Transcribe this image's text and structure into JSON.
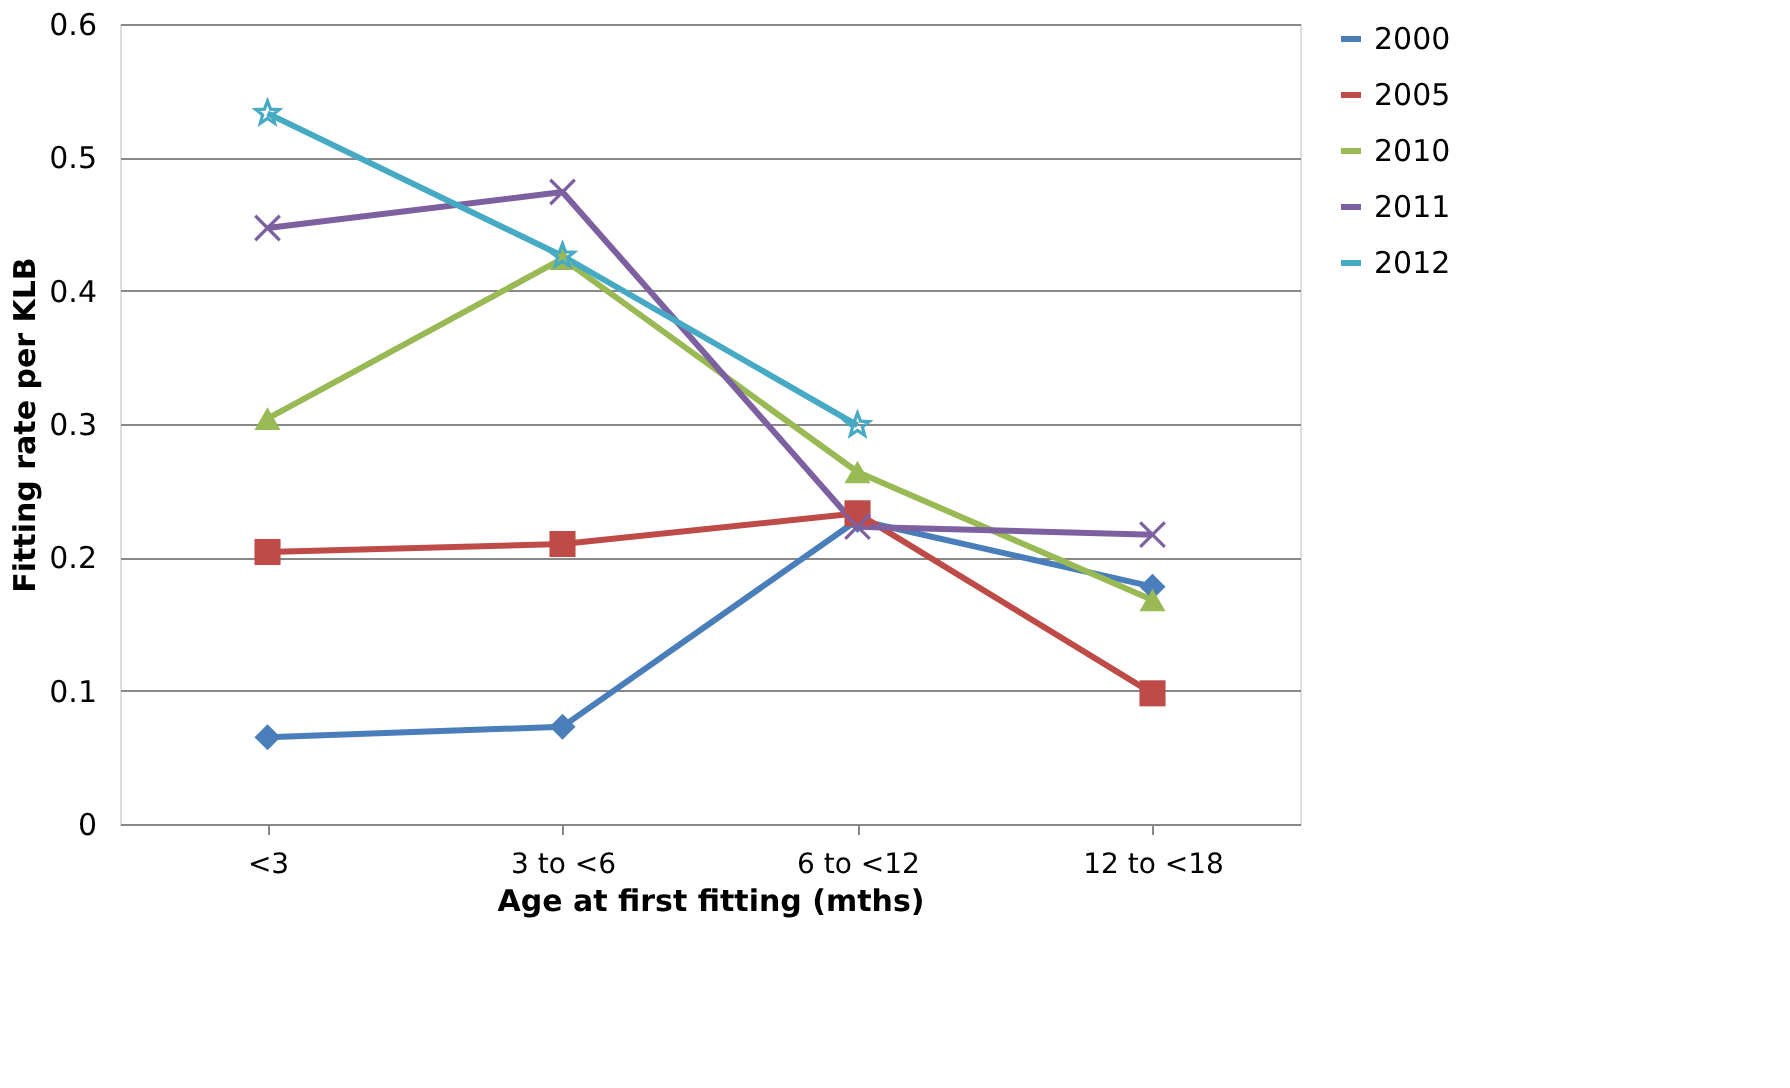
{
  "chart_data": {
    "type": "line",
    "xlabel": "Age at first fitting (mths)",
    "ylabel": "Fitting rate per KLB",
    "categories": [
      "<3",
      "3 to <6",
      "6 to <12",
      "12 to <18"
    ],
    "series": [
      {
        "name": "2000",
        "color": "#4a7ebb",
        "marker": "diamond",
        "values": [
          0.065,
          0.073,
          0.228,
          0.178
        ]
      },
      {
        "name": "2005",
        "color": "#be4b48",
        "marker": "square",
        "values": [
          0.204,
          0.21,
          0.233,
          0.098
        ]
      },
      {
        "name": "2010",
        "color": "#98b954",
        "marker": "triangle",
        "values": [
          0.304,
          0.424,
          0.264,
          0.168
        ]
      },
      {
        "name": "2011",
        "color": "#7d60a0",
        "marker": "cross",
        "values": [
          0.447,
          0.474,
          0.223,
          0.217
        ]
      },
      {
        "name": "2012",
        "color": "#46aac5",
        "marker": "star",
        "values": [
          0.533,
          0.426,
          0.299,
          null
        ]
      }
    ],
    "ylim": [
      0,
      0.6
    ],
    "yticks": [
      0,
      0.1,
      0.2,
      0.3,
      0.4,
      0.5,
      0.6
    ],
    "grid": "y",
    "legend": "right",
    "line_style": "solid"
  }
}
